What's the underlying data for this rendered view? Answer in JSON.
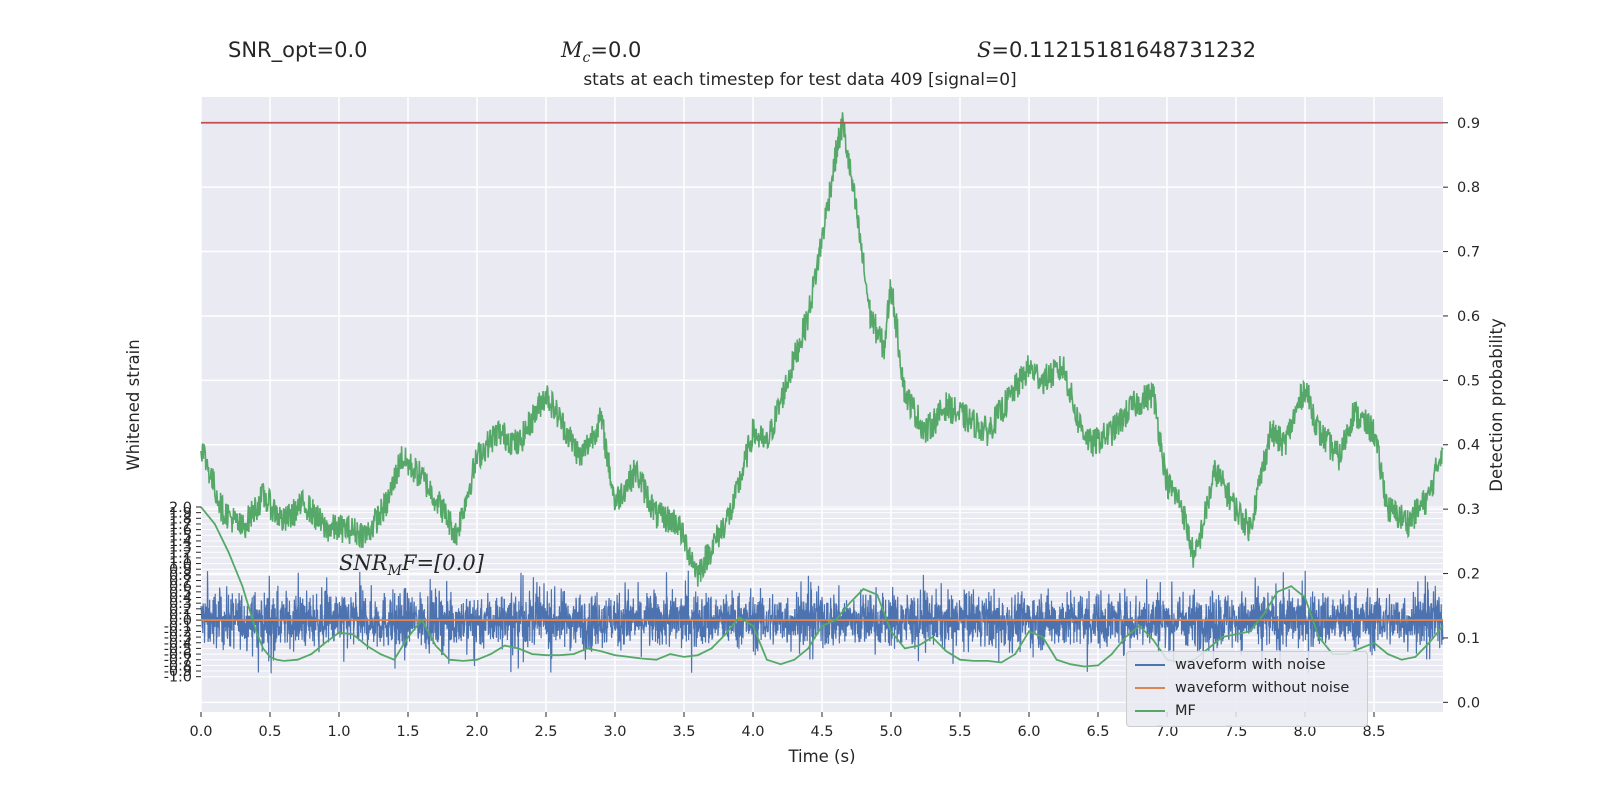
{
  "header": {
    "snr_opt": "SNR_opt=0.0",
    "mc_sym": "M",
    "mc_sub": "c",
    "mc_val": "=0.0",
    "s_sym": "S",
    "s_val": "=0.11215181648731232",
    "subtitle": "stats at each timestep for test data 409 [signal=0]"
  },
  "annotation": {
    "sym": "SNR",
    "sub": "M",
    "rest": "F=[0.0]"
  },
  "chart_data": [
    {
      "type": "line",
      "title": "stats at each timestep for test data 409 [signal=0]",
      "xlabel": "Time (s)",
      "ylabel": "Detection probability",
      "y_axis_side": "right",
      "xlim": [
        0.0,
        9.0
      ],
      "ylim": [
        -0.015,
        0.94
      ],
      "x_ticks": [
        "0.0",
        "0.5",
        "1.0",
        "1.5",
        "2.0",
        "2.5",
        "3.0",
        "3.5",
        "4.0",
        "4.5",
        "5.0",
        "5.5",
        "6.0",
        "6.5",
        "7.0",
        "7.5",
        "8.0",
        "8.5"
      ],
      "y_ticks": [
        "0.0",
        "0.1",
        "0.2",
        "0.3",
        "0.4",
        "0.5",
        "0.6",
        "0.7",
        "0.8",
        "0.9"
      ],
      "grid": true,
      "threshold": {
        "y": 0.9,
        "color": "#c44e52"
      },
      "series": [
        {
          "color": "#55a868",
          "x": [
            0.0,
            0.15,
            0.3,
            0.45,
            0.6,
            0.75,
            0.9,
            1.05,
            1.2,
            1.35,
            1.45,
            1.6,
            1.75,
            1.85,
            2.0,
            2.15,
            2.3,
            2.5,
            2.6,
            2.75,
            2.9,
            3.0,
            3.15,
            3.3,
            3.45,
            3.6,
            3.7,
            3.85,
            4.0,
            4.1,
            4.25,
            4.4,
            4.5,
            4.6,
            4.65,
            4.75,
            4.85,
            4.95,
            5.0,
            5.1,
            5.25,
            5.4,
            5.55,
            5.7,
            5.85,
            6.0,
            6.1,
            6.25,
            6.35,
            6.45,
            6.6,
            6.75,
            6.9,
            7.0,
            7.1,
            7.2,
            7.35,
            7.5,
            7.6,
            7.75,
            7.85,
            8.0,
            8.1,
            8.25,
            8.35,
            8.5,
            8.6,
            8.75,
            8.9,
            9.0
          ],
          "y": [
            0.4,
            0.3,
            0.27,
            0.32,
            0.28,
            0.31,
            0.27,
            0.27,
            0.26,
            0.31,
            0.38,
            0.35,
            0.3,
            0.26,
            0.38,
            0.42,
            0.4,
            0.48,
            0.44,
            0.38,
            0.44,
            0.31,
            0.36,
            0.29,
            0.28,
            0.2,
            0.24,
            0.3,
            0.42,
            0.4,
            0.5,
            0.6,
            0.72,
            0.85,
            0.9,
            0.76,
            0.6,
            0.55,
            0.65,
            0.48,
            0.42,
            0.46,
            0.44,
            0.42,
            0.47,
            0.52,
            0.5,
            0.52,
            0.44,
            0.4,
            0.42,
            0.46,
            0.48,
            0.34,
            0.31,
            0.22,
            0.36,
            0.3,
            0.27,
            0.42,
            0.4,
            0.49,
            0.42,
            0.38,
            0.45,
            0.42,
            0.3,
            0.28,
            0.32,
            0.4
          ]
        }
      ]
    },
    {
      "type": "line",
      "xlabel": "Time (s)",
      "ylabel": "Whitened strain",
      "xlim": [
        0.0,
        9.0
      ],
      "ylim": [
        -1.2,
        2.0
      ],
      "y_ticks": [
        "-1.0",
        "-0.9",
        "-0.8",
        "-0.7",
        "-0.6",
        "-0.5",
        "-0.4",
        "-0.3",
        "-0.2",
        "-0.1",
        "0.0",
        "0.1",
        "0.2",
        "0.3",
        "0.4",
        "0.5",
        "0.6",
        "0.7",
        "0.8",
        "0.9",
        "1.0",
        "1.1",
        "1.2",
        "1.3",
        "1.4",
        "1.5",
        "1.6",
        "1.7",
        "1.8",
        "1.9",
        "2.0"
      ],
      "series": [
        {
          "name": "waveform with noise",
          "color": "#4c72b0",
          "noise_amplitude": 0.55,
          "noise_peak": 0.95
        },
        {
          "name": "waveform without noise",
          "color": "#dd8452",
          "x": [
            0.0,
            9.0
          ],
          "y": [
            0.0,
            0.0
          ]
        },
        {
          "name": "MF",
          "color": "#55a868",
          "x": [
            0.0,
            0.1,
            0.2,
            0.25,
            0.3,
            0.35,
            0.4,
            0.45,
            0.5,
            0.55,
            0.6,
            0.7,
            0.8,
            0.9,
            1.0,
            1.1,
            1.2,
            1.3,
            1.4,
            1.5,
            1.6,
            1.7,
            1.8,
            1.9,
            2.0,
            2.1,
            2.2,
            2.3,
            2.4,
            2.5,
            2.6,
            2.7,
            2.8,
            2.9,
            3.0,
            3.1,
            3.2,
            3.3,
            3.4,
            3.5,
            3.6,
            3.7,
            3.8,
            3.9,
            4.0,
            4.1,
            4.2,
            4.3,
            4.4,
            4.5,
            4.6,
            4.7,
            4.8,
            4.9,
            5.0,
            5.1,
            5.2,
            5.3,
            5.4,
            5.5,
            5.6,
            5.7,
            5.8,
            5.9,
            6.0,
            6.1,
            6.2,
            6.3,
            6.4,
            6.5,
            6.6,
            6.7,
            6.8,
            6.9,
            7.0,
            7.1,
            7.2,
            7.3,
            7.4,
            7.5,
            7.6,
            7.7,
            7.8,
            7.9,
            8.0,
            8.1,
            8.2,
            8.3,
            8.4,
            8.5,
            8.6,
            8.7,
            8.8,
            8.9,
            9.0
          ],
          "y": [
            2.0,
            1.7,
            1.2,
            0.9,
            0.6,
            0.2,
            -0.2,
            -0.5,
            -0.65,
            -0.7,
            -0.72,
            -0.7,
            -0.6,
            -0.4,
            -0.22,
            -0.25,
            -0.45,
            -0.6,
            -0.7,
            -0.3,
            0.0,
            -0.45,
            -0.7,
            -0.72,
            -0.7,
            -0.6,
            -0.45,
            -0.5,
            -0.6,
            -0.62,
            -0.62,
            -0.6,
            -0.5,
            -0.55,
            -0.62,
            -0.65,
            -0.68,
            -0.7,
            -0.6,
            -0.65,
            -0.62,
            -0.5,
            -0.25,
            0.05,
            -0.1,
            -0.7,
            -0.78,
            -0.7,
            -0.5,
            -0.1,
            0.0,
            0.3,
            0.55,
            0.45,
            -0.2,
            -0.5,
            -0.45,
            -0.3,
            -0.55,
            -0.7,
            -0.72,
            -0.72,
            -0.75,
            -0.6,
            -0.2,
            -0.3,
            -0.7,
            -0.78,
            -0.82,
            -0.8,
            -0.6,
            -0.3,
            -0.1,
            -0.35,
            -0.7,
            -0.75,
            -0.7,
            -0.5,
            -0.3,
            -0.25,
            -0.2,
            0.1,
            0.5,
            0.6,
            0.4,
            -0.3,
            -0.6,
            -0.6,
            -0.5,
            -0.4,
            -0.6,
            -0.7,
            -0.65,
            -0.4,
            -0.1
          ]
        }
      ]
    }
  ]
}
